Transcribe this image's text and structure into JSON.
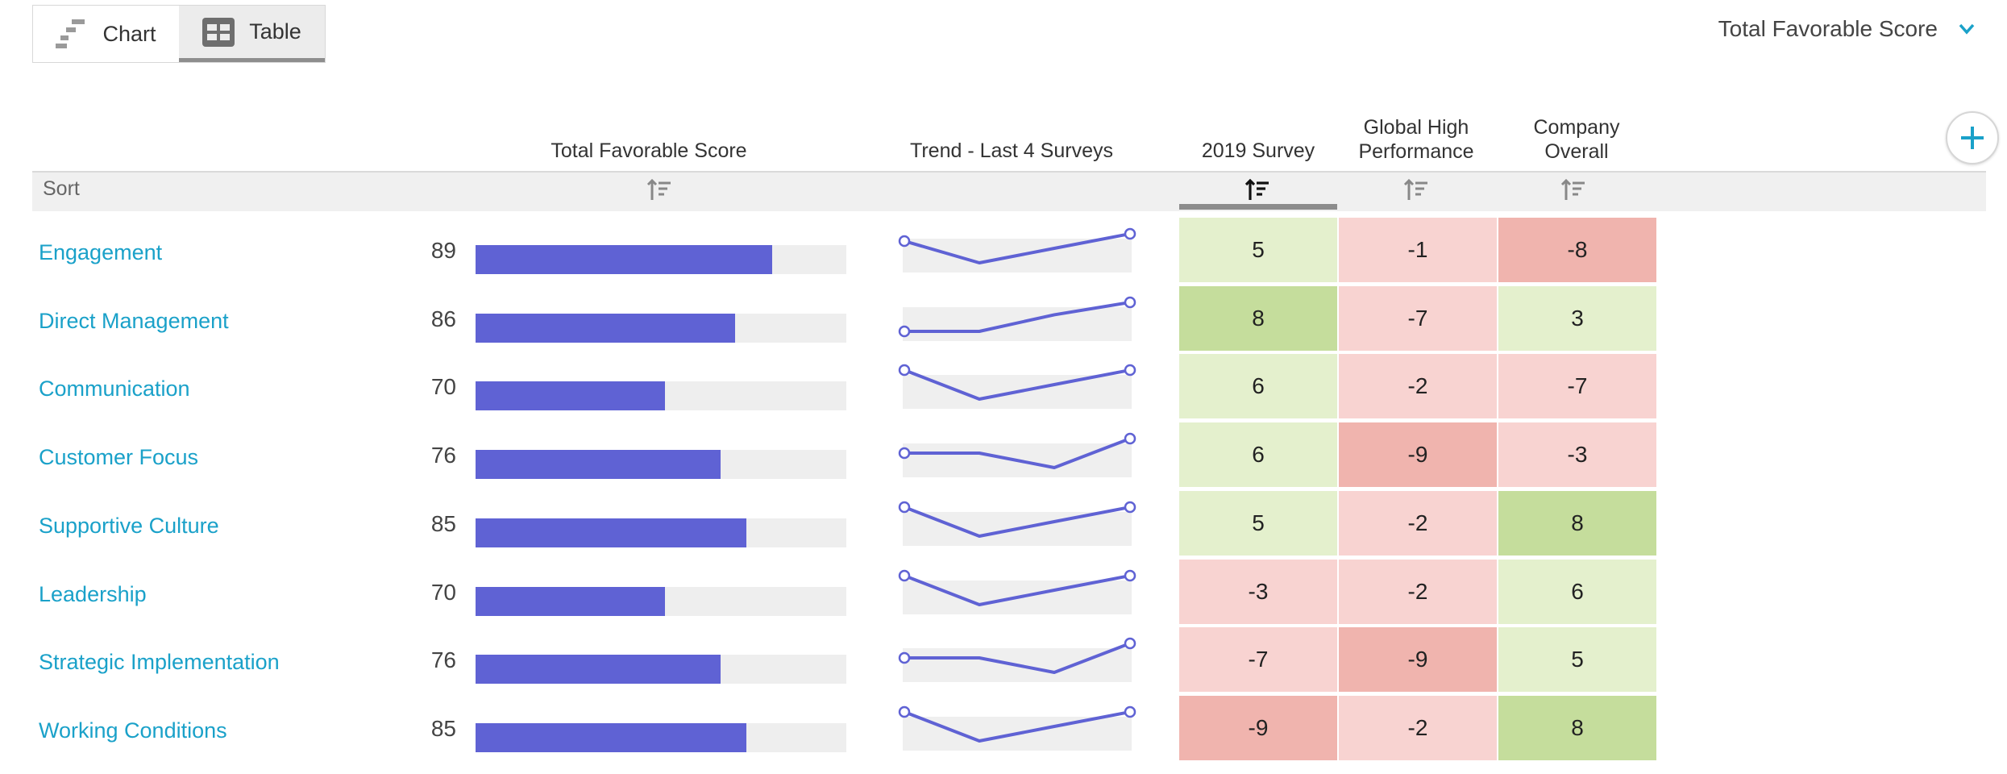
{
  "view_toggle": {
    "chart_label": "Chart",
    "table_label": "Table",
    "active": "table"
  },
  "metric_selector": {
    "selected": "Total Favorable Score"
  },
  "columns": {
    "score": "Total Favorable Score",
    "trend": "Trend - Last 4 Surveys",
    "survey_2019": "2019 Survey",
    "global_line1": "Global High",
    "global_line2": "Performance",
    "company_line1": "Company",
    "company_line2": "Overall"
  },
  "sort_label": "Sort",
  "colors": {
    "bar": "#5f62d4",
    "bar_track": "#eeeeee",
    "link": "#1aa1c9",
    "pos_strong": "#c5dd9c",
    "pos_light": "#e4f0cd",
    "neg_light": "#f8d3d1",
    "neg_strong": "#f0b4ae"
  },
  "rows": [
    {
      "name": "Engagement",
      "score": "89",
      "bar_pct": 80,
      "trend": [
        89,
        86,
        88,
        90
      ],
      "survey_2019": "5",
      "global": "-1",
      "company": "-8"
    },
    {
      "name": "Direct Management",
      "score": "86",
      "bar_pct": 70,
      "trend": [
        80,
        80,
        84,
        87
      ],
      "survey_2019": "8",
      "global": "-7",
      "company": "3"
    },
    {
      "name": "Communication",
      "score": "70",
      "bar_pct": 51,
      "trend": [
        72,
        68,
        70,
        72
      ],
      "survey_2019": "6",
      "global": "-2",
      "company": "-7"
    },
    {
      "name": "Customer Focus",
      "score": "76",
      "bar_pct": 66,
      "trend": [
        74,
        74,
        72,
        76
      ],
      "survey_2019": "6",
      "global": "-9",
      "company": "-3"
    },
    {
      "name": "Supportive Culture",
      "score": "85",
      "bar_pct": 73,
      "trend": [
        87,
        83,
        85,
        87
      ],
      "survey_2019": "5",
      "global": "-2",
      "company": "8"
    },
    {
      "name": "Leadership",
      "score": "70",
      "bar_pct": 51,
      "trend": [
        72,
        68,
        70,
        72
      ],
      "survey_2019": "-3",
      "global": "-2",
      "company": "6"
    },
    {
      "name": "Strategic Implementation",
      "score": "76",
      "bar_pct": 66,
      "trend": [
        74,
        74,
        72,
        76
      ],
      "survey_2019": "-7",
      "global": "-9",
      "company": "5"
    },
    {
      "name": "Working Conditions",
      "score": "85",
      "bar_pct": 73,
      "trend": [
        87,
        83,
        85,
        87
      ],
      "survey_2019": "-9",
      "global": "-2",
      "company": "8"
    }
  ]
}
